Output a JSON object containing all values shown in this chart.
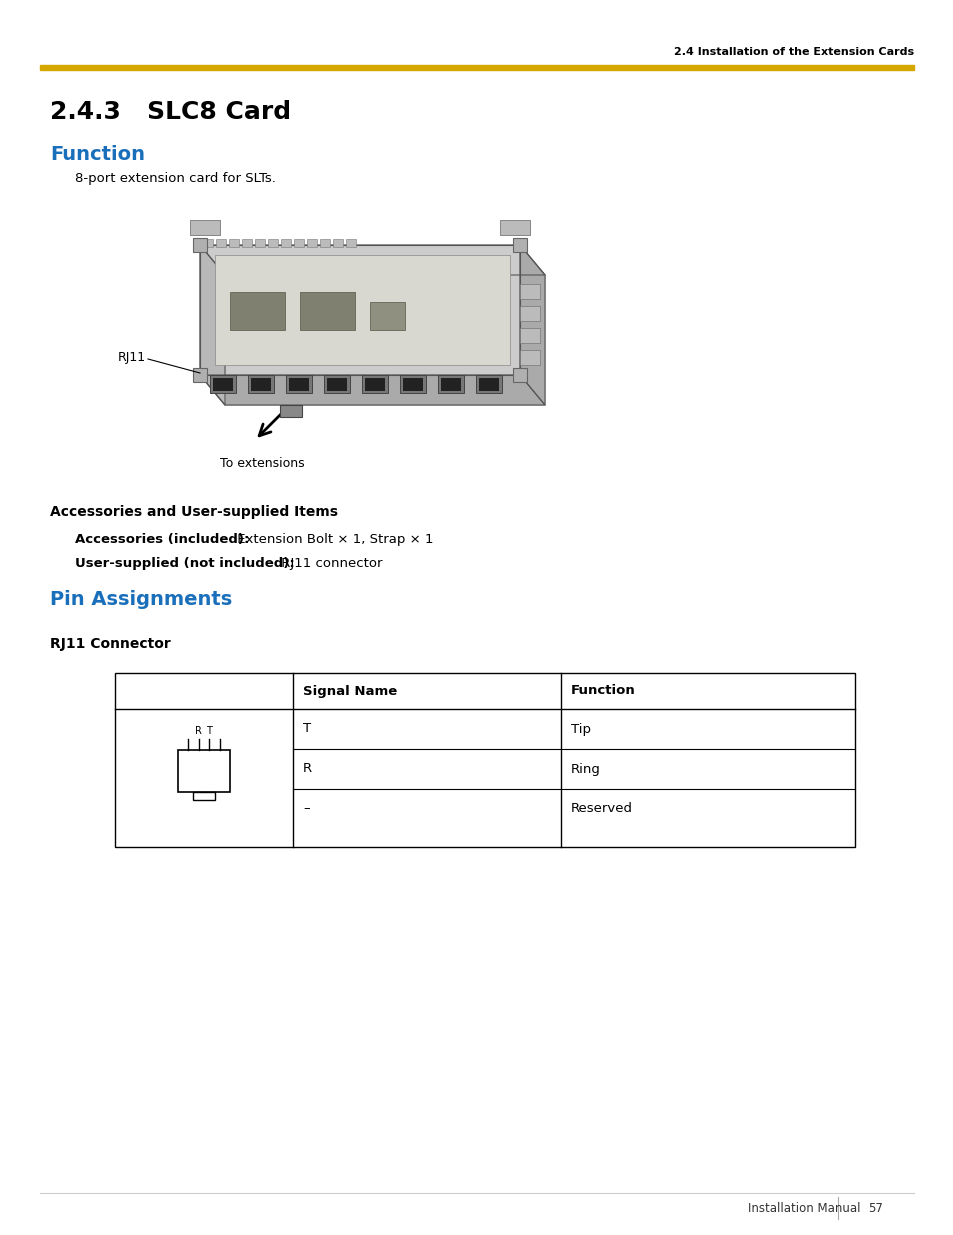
{
  "page_bg": "#ffffff",
  "header_text": "2.4 Installation of the Extension Cards",
  "header_line_color": "#D4A800",
  "section_title": "2.4.3   SLC8 Card",
  "function_label": "Function",
  "function_color": "#1a6fbb",
  "function_desc": "8-port extension card for SLTs.",
  "rj11_label": "RJ11",
  "to_ext_label": "To extensions",
  "accessories_heading": "Accessories and User-supplied Items",
  "accessories_line1_bold": "Accessories (included):",
  "accessories_line1_rest": " Extension Bolt × 1, Strap × 1",
  "accessories_line2_bold": "User-supplied (not included):",
  "accessories_line2_rest": " RJ11 connector",
  "pin_assign_label": "Pin Assignments",
  "pin_assign_color": "#1a6fbb",
  "rj11_connector_label": "RJ11 Connector",
  "table_headers": [
    "Signal Name",
    "Function"
  ],
  "table_rows": [
    [
      "T",
      "Tip"
    ],
    [
      "R",
      "Ring"
    ],
    [
      "–",
      "Reserved"
    ]
  ],
  "footer_text_left": "Installation Manual",
  "footer_page": "57"
}
